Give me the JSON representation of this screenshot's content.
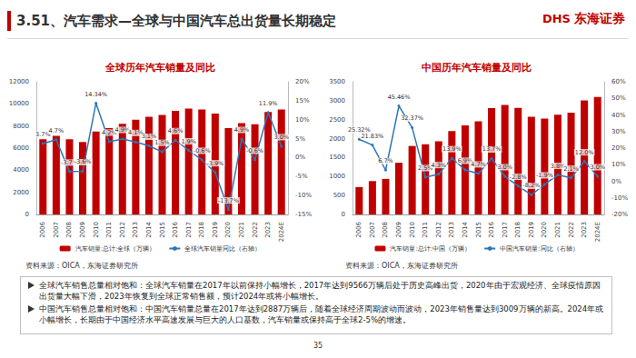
{
  "header": {
    "title": "3.51、汽车需求—全球与中国汽车总出货量长期稳定",
    "logo": "DHS",
    "logo_cn": "东海证券"
  },
  "chart_data": [
    {
      "type": "bar",
      "title": "全球历年汽车销量及同比",
      "categories": [
        "2006",
        "2007",
        "2008",
        "2009",
        "2010",
        "2011",
        "2012",
        "2013",
        "2014",
        "2015",
        "2016",
        "2017",
        "2018",
        "2019",
        "2020",
        "2021",
        "2022",
        "2023",
        "2024E"
      ],
      "series": [
        {
          "name": "汽车销量:总计:全球（万辆）",
          "type": "bar",
          "color": "#c00000",
          "values": [
            6800,
            7100,
            6800,
            6550,
            7500,
            7800,
            8200,
            8560,
            8830,
            9000,
            9380,
            9566,
            9500,
            9130,
            7800,
            8270,
            8160,
            9270,
            9500
          ]
        },
        {
          "name": "全球汽车销量同比（右轴）",
          "type": "line",
          "color": "#2e75b6",
          "axis": "y2",
          "data_labels": true,
          "values": [
            3.7,
            4.7,
            -3.7,
            -3.6,
            14.34,
            4.2,
            4.9,
            4.1,
            3.1,
            1.5,
            4.6,
            1.9,
            -0.6,
            -3.9,
            -13.7,
            4.9,
            -0.6,
            11.9,
            3.0
          ],
          "value_labels": [
            "3.7%",
            "4.7%",
            "-3.7%",
            "-3.6%",
            "14.34%",
            "4.2%",
            "4.9%",
            "4.1%",
            "3.1%",
            "1.5%",
            "4.6%",
            "1.9%",
            "-0.6%",
            "-3.9%",
            "-13.7%",
            "4.9%",
            "-0.6%",
            "11.9%",
            "3.0%"
          ]
        }
      ],
      "ylim": [
        0,
        12000
      ],
      "yticks": [
        0,
        2000,
        4000,
        6000,
        8000,
        10000,
        12000
      ],
      "y2lim": [
        -15,
        20
      ],
      "y2ticks": [
        {
          "value": -15,
          "label": "-15%"
        },
        {
          "value": -10,
          "label": "-10%"
        },
        {
          "value": -5,
          "label": "-5%"
        },
        {
          "value": 0,
          "label": "0%"
        },
        {
          "value": 5,
          "label": "5%"
        },
        {
          "value": 10,
          "label": "10%"
        },
        {
          "value": 15,
          "label": "15%"
        },
        {
          "value": 20,
          "label": "20%"
        }
      ],
      "grid": false,
      "legend": "bottom"
    },
    {
      "type": "bar",
      "title": "中国历年汽车销量及同比",
      "categories": [
        "2006",
        "2007",
        "2008",
        "2009",
        "2010",
        "2011",
        "2012",
        "2013",
        "2014",
        "2015",
        "2016",
        "2017",
        "2018",
        "2019",
        "2020",
        "2021",
        "2022",
        "2023",
        "2024E"
      ],
      "series": [
        {
          "name": "汽车销量:总计:中国（万辆）",
          "type": "bar",
          "color": "#c00000",
          "values": [
            722,
            880,
            938,
            1364,
            1806,
            1851,
            1931,
            2198,
            2349,
            2460,
            2803,
            2887,
            2808,
            2577,
            2531,
            2628,
            2686,
            3009,
            3100
          ]
        },
        {
          "name": "中国汽车销量:同比（右轴）",
          "type": "line",
          "color": "#2e75b6",
          "axis": "y2",
          "data_labels": true,
          "values": [
            25.32,
            21.83,
            6.7,
            45.46,
            32.37,
            2.5,
            4.3,
            13.9,
            6.9,
            4.7,
            13.7,
            3.0,
            -2.8,
            -8.2,
            -1.9,
            3.8,
            2.1,
            12.0,
            3.0
          ],
          "value_labels": [
            "25.32%",
            "21.83%",
            "6.7%",
            "45.46%",
            "32.37%",
            "2.5%",
            "4.3%",
            "13.9%",
            "6.9%",
            "4.7%",
            "13.7%",
            "3.0%",
            "-2.8%",
            "-8.2%",
            "-1.9%",
            "3.8%",
            "2.1%",
            "12.0%",
            "3.0%"
          ]
        }
      ],
      "ylim": [
        0,
        3500
      ],
      "yticks": [
        0,
        500,
        1000,
        1500,
        2000,
        2500,
        3000,
        3500
      ],
      "y2lim": [
        -20,
        60
      ],
      "y2ticks": [
        {
          "value": -20,
          "label": "-20%"
        },
        {
          "value": -10,
          "label": "-10%"
        },
        {
          "value": 0,
          "label": "0%"
        },
        {
          "value": 10,
          "label": "10%"
        },
        {
          "value": 20,
          "label": "20%"
        },
        {
          "value": 30,
          "label": "30%"
        },
        {
          "value": 40,
          "label": "40%"
        },
        {
          "value": 50,
          "label": "50%"
        },
        {
          "value": 60,
          "label": "60%"
        }
      ],
      "grid": false,
      "legend": "bottom"
    }
  ],
  "sources": [
    "资料来源：OICA，东海证券研究所",
    "资料来源：OICA，东海证券研究所"
  ],
  "notes": [
    "全球汽车销售总量相对饱和：全球汽车销量在2017年以前保持小幅增长，2017年达到9566万辆后处于历史高峰出货，2020年由于宏观经济、全球疫情原因出货量大幅下滑，2023年恢复到全球正常销售额，预计2024年或将小幅增长。",
    "中国汽车销售总量相对饱和：中国汽车销量总量在2017年达到2887万辆后，随着全球经济周期波动而波动，2023年销售量达到3009万辆的新高。2024年或小幅增长，长期由于中国经济水平高速发展与巨大的人口基数，汽车销量或保持高于全球2-5%的增速。"
  ],
  "page_number": "35"
}
